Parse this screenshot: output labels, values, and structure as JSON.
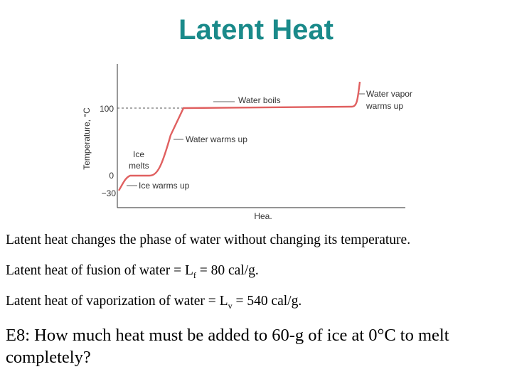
{
  "slide": {
    "title": "Latent Heat",
    "title_color": "#1a8a8a"
  },
  "chart_data": {
    "type": "line",
    "xlabel": "Hea.",
    "ylabel": "Temperature, °C",
    "y_ticks": [
      "100",
      "0",
      "−30"
    ],
    "x_grid": false,
    "y_grid": false,
    "segments": [
      {
        "label": "Ice warms up",
        "from_temp": -30,
        "to_temp": 0
      },
      {
        "label": "Ice melts",
        "temp": 0
      },
      {
        "label": "Water warms up",
        "from_temp": 0,
        "to_temp": 100
      },
      {
        "label": "Water boils",
        "temp": 100
      },
      {
        "label": "Water vapor warms up",
        "from_temp": 100
      }
    ],
    "annotations": {
      "ice_melts_1": "Ice",
      "ice_melts_2": "melts",
      "ice_warms": "Ice warms up",
      "water_warms": "Water warms up",
      "water_boils": "Water boils",
      "vapor_1": "Water vapor",
      "vapor_2": "warms up"
    },
    "line_color": "#e06060"
  },
  "text": {
    "line1": "Latent heat changes the phase of water without changing its temperature.",
    "fusion_pre": "Latent heat of fusion of water = L",
    "fusion_sub": "f",
    "fusion_post": " = 80 cal/g.",
    "vap_pre": "Latent heat of vaporization of water = L",
    "vap_sub": "v",
    "vap_post": " = 540 cal/g."
  },
  "question": {
    "text": "E8: How much heat must be added to 60-g of ice at 0°C to melt completely?"
  }
}
